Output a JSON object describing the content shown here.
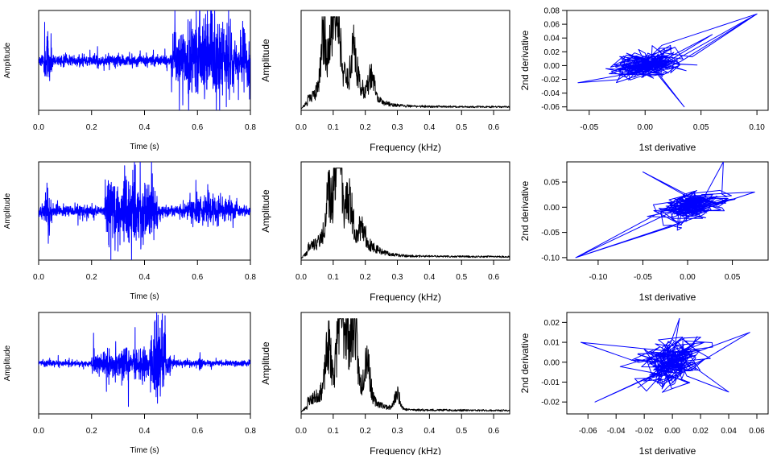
{
  "chart_data": [
    {
      "type": "line",
      "panel": "waveform",
      "row": 1,
      "series": [
        {
          "color": "#0000ff",
          "shape": "waveform",
          "seed": 11,
          "bursts": [
            [
              0.02,
              0.05,
              0.55
            ],
            [
              0.5,
              0.8,
              0.95
            ],
            [
              0.7,
              0.73,
              1.0
            ]
          ],
          "base": 0.12
        }
      ],
      "xlabel": "Time (s)",
      "ylabel": "Amplitude",
      "xlim": [
        0,
        0.8
      ],
      "xticks": [
        "0.0",
        "0.2",
        "0.4",
        "0.6",
        "0.8"
      ],
      "yticks": [],
      "grid": false
    },
    {
      "type": "line",
      "panel": "spectrum",
      "row": 1,
      "series": [
        {
          "color": "#000000",
          "shape": "spectrum",
          "seed": 21,
          "peaks": [
            [
              0.07,
              0.75
            ],
            [
              0.1,
              0.9
            ],
            [
              0.115,
              0.75
            ],
            [
              0.165,
              0.45
            ],
            [
              0.22,
              0.28
            ]
          ]
        }
      ],
      "xlabel": "Frequency (kHz)",
      "ylabel": "Amplitude",
      "xlim": [
        0,
        0.65
      ],
      "xticks": [
        "0.0",
        "0.1",
        "0.2",
        "0.3",
        "0.4",
        "0.5",
        "0.6"
      ],
      "yticks": [],
      "grid": false
    },
    {
      "type": "scatter",
      "panel": "phase",
      "row": 1,
      "series": [
        {
          "color": "#0000ff",
          "shape": "phase",
          "seed": 31,
          "sx": 0.028,
          "sy": 0.018,
          "n": 300,
          "extremes": [
            [
              0.1,
              0.075
            ],
            [
              0.035,
              -0.06
            ],
            [
              -0.06,
              -0.025
            ],
            [
              0.06,
              0.045
            ]
          ]
        }
      ],
      "xlabel": "1st derivative",
      "ylabel": "2nd derivative",
      "xlim": [
        -0.07,
        0.11
      ],
      "ylim": [
        -0.065,
        0.08
      ],
      "xticks": [
        "-0.05",
        "0.00",
        "0.05",
        "0.10"
      ],
      "xtick_values": [
        -0.05,
        0.0,
        0.05,
        0.1
      ],
      "yticks": [
        "-0.06",
        "-0.04",
        "-0.02",
        "0.00",
        "0.02",
        "0.04",
        "0.06",
        "0.08"
      ],
      "ytick_values": [
        -0.06,
        -0.04,
        -0.02,
        0.0,
        0.02,
        0.04,
        0.06,
        0.08
      ],
      "grid": false
    },
    {
      "type": "line",
      "panel": "waveform",
      "row": 2,
      "series": [
        {
          "color": "#0000ff",
          "shape": "waveform",
          "seed": 12,
          "bursts": [
            [
              0.02,
              0.05,
              0.5
            ],
            [
              0.25,
              0.45,
              0.9
            ],
            [
              0.37,
              0.4,
              1.0
            ],
            [
              0.55,
              0.75,
              0.35
            ]
          ],
          "base": 0.12
        }
      ],
      "xlabel": "Time (s)",
      "ylabel": "Amplitude",
      "xlim": [
        0,
        0.8
      ],
      "xticks": [
        "0.0",
        "0.2",
        "0.4",
        "0.6",
        "0.8"
      ],
      "yticks": [],
      "grid": false
    },
    {
      "type": "line",
      "panel": "spectrum",
      "row": 2,
      "series": [
        {
          "color": "#000000",
          "shape": "spectrum",
          "seed": 22,
          "peaks": [
            [
              0.085,
              0.5
            ],
            [
              0.11,
              0.85
            ],
            [
              0.12,
              1.0
            ],
            [
              0.15,
              0.45
            ],
            [
              0.19,
              0.2
            ]
          ]
        }
      ],
      "xlabel": "Frequency (kHz)",
      "ylabel": "Amplitude",
      "xlim": [
        0,
        0.65
      ],
      "xticks": [
        "0.0",
        "0.1",
        "0.2",
        "0.3",
        "0.4",
        "0.5",
        "0.6"
      ],
      "yticks": [],
      "grid": false
    },
    {
      "type": "scatter",
      "panel": "phase",
      "row": 2,
      "series": [
        {
          "color": "#0000ff",
          "shape": "phase",
          "seed": 32,
          "sx": 0.035,
          "sy": 0.022,
          "n": 300,
          "extremes": [
            [
              -0.125,
              -0.1
            ],
            [
              0.04,
              0.09
            ],
            [
              -0.05,
              0.07
            ],
            [
              0.075,
              0.03
            ]
          ]
        }
      ],
      "xlabel": "1st derivative",
      "ylabel": "2nd derivative",
      "xlim": [
        -0.135,
        0.09
      ],
      "ylim": [
        -0.105,
        0.09
      ],
      "xticks": [
        "-0.10",
        "-0.05",
        "0.00",
        "0.05"
      ],
      "xtick_values": [
        -0.1,
        -0.05,
        0.0,
        0.05
      ],
      "yticks": [
        "-0.10",
        "-0.05",
        "0.00",
        "0.05"
      ],
      "ytick_values": [
        -0.1,
        -0.05,
        0.0,
        0.05
      ],
      "grid": false
    },
    {
      "type": "line",
      "panel": "waveform",
      "row": 3,
      "series": [
        {
          "color": "#0000ff",
          "shape": "waveform",
          "seed": 13,
          "bursts": [
            [
              0.2,
              0.5,
              0.35
            ],
            [
              0.42,
              0.48,
              1.0
            ],
            [
              0.6,
              0.62,
              0.15
            ]
          ],
          "base": 0.06
        }
      ],
      "xlabel": "Time (s)",
      "ylabel": "Amplitude",
      "xlim": [
        0,
        0.8
      ],
      "xticks": [
        "0.0",
        "0.2",
        "0.4",
        "0.6",
        "0.8"
      ],
      "yticks": [],
      "grid": false
    },
    {
      "type": "line",
      "panel": "spectrum",
      "row": 3,
      "series": [
        {
          "color": "#000000",
          "shape": "spectrum",
          "seed": 23,
          "peaks": [
            [
              0.085,
              0.55
            ],
            [
              0.12,
              0.85
            ],
            [
              0.14,
              0.75
            ],
            [
              0.165,
              0.95
            ],
            [
              0.205,
              0.55
            ],
            [
              0.3,
              0.2
            ]
          ]
        }
      ],
      "xlabel": "Frequency (kHz)",
      "ylabel": "Amplitude",
      "xlim": [
        0,
        0.65
      ],
      "xticks": [
        "0.0",
        "0.1",
        "0.2",
        "0.3",
        "0.4",
        "0.5",
        "0.6"
      ],
      "yticks": [],
      "grid": false
    },
    {
      "type": "scatter",
      "panel": "phase",
      "row": 3,
      "series": [
        {
          "color": "#0000ff",
          "shape": "phase",
          "seed": 33,
          "sx": 0.02,
          "sy": 0.009,
          "n": 300,
          "extremes": [
            [
              -0.065,
              0.01
            ],
            [
              0.055,
              0.015
            ],
            [
              0.005,
              0.022
            ],
            [
              -0.055,
              -0.02
            ],
            [
              0.04,
              -0.015
            ]
          ]
        }
      ],
      "xlabel": "1st derivative",
      "ylabel": "2nd derivative",
      "xlim": [
        -0.075,
        0.068
      ],
      "ylim": [
        -0.026,
        0.025
      ],
      "xticks": [
        "-0.06",
        "-0.04",
        "-0.02",
        "0.00",
        "0.02",
        "0.04",
        "0.06"
      ],
      "xtick_values": [
        -0.06,
        -0.04,
        -0.02,
        0.0,
        0.02,
        0.04,
        0.06
      ],
      "yticks": [
        "-0.02",
        "-0.01",
        "0.00",
        "0.01",
        "0.02"
      ],
      "ytick_values": [
        -0.02,
        -0.01,
        0.0,
        0.01,
        0.02
      ],
      "grid": false
    }
  ]
}
